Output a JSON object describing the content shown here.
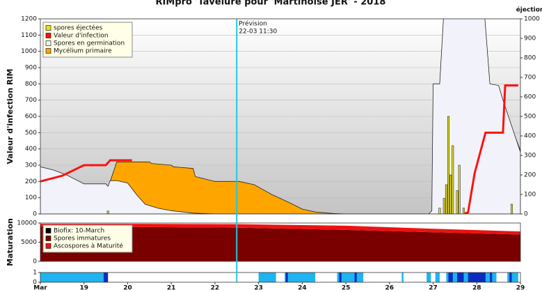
{
  "chart_data": [
    {
      "type": "combo",
      "title": "RIMpro 'Tavelure pour 'Martinoise JER' - 2018",
      "y_label": "Valeur d'infection RIM",
      "y2_label": "éjection",
      "xlim": [
        18,
        29
      ],
      "ylim": [
        0,
        1200
      ],
      "yticks": [
        0,
        100,
        200,
        300,
        400,
        500,
        600,
        700,
        800,
        900,
        1000,
        1100,
        1200
      ],
      "y2lim": [
        0,
        1000
      ],
      "y2ticks": [
        0,
        100,
        200,
        300,
        400,
        500,
        600,
        700,
        800,
        900,
        1000
      ],
      "grid": true,
      "forecast": {
        "label": "Prévision",
        "time": "22-03 11:30",
        "x": 22.5,
        "color": "#22c8dc"
      },
      "series": [
        {
          "name": "spores éjectées",
          "kind": "bar",
          "axis": "y2",
          "color": "#e8e020",
          "x": [
            19.55,
            27.15,
            27.25,
            27.3,
            27.35,
            27.4,
            27.45,
            27.55,
            27.6,
            27.7,
            28.8
          ],
          "values": [
            15,
            30,
            80,
            150,
            500,
            200,
            350,
            120,
            250,
            30,
            50
          ]
        },
        {
          "name": "Valeur d'infection",
          "kind": "line",
          "color": "#ff1010",
          "x": [
            18,
            18.5,
            19,
            19.5,
            19.6,
            20.1,
            20.15,
            27.7,
            27.8,
            27.95,
            28.2,
            28.4,
            28.6,
            28.65,
            28.95
          ],
          "values": [
            200,
            235,
            300,
            300,
            330,
            330,
            null,
            0,
            10,
            250,
            500,
            500,
            500,
            790,
            790
          ]
        },
        {
          "name": "Spores en germination",
          "kind": "area",
          "color": "#f2f2fa",
          "x": [
            18,
            18.3,
            18.6,
            19,
            19.5,
            19.55,
            19.6,
            19.75,
            20,
            20.2,
            20.4,
            20.7,
            21,
            21.5,
            22,
            26.9,
            26.97,
            27.0,
            27.15,
            27.3,
            28.1,
            28.3,
            28.5,
            28.6,
            29
          ],
          "values": [
            290,
            270,
            240,
            185,
            185,
            170,
            205,
            205,
            190,
            120,
            60,
            35,
            20,
            5,
            0,
            0,
            20,
            800,
            800,
            1500,
            1500,
            800,
            790,
            700,
            380
          ]
        },
        {
          "name": "Mycélium primaire",
          "kind": "area",
          "color": "#ffa500",
          "x": [
            19.55,
            19.6,
            19.75,
            20,
            20.5,
            20.55,
            21,
            21.05,
            21.5,
            21.55,
            22,
            22.55,
            22.9,
            23.3,
            23.7,
            24,
            24.3,
            24.7,
            25,
            28.5,
            28.55,
            29
          ],
          "values": [
            0,
            200,
            320,
            320,
            320,
            310,
            300,
            290,
            280,
            230,
            200,
            200,
            180,
            120,
            70,
            30,
            12,
            3,
            0,
            0,
            700,
            390
          ]
        }
      ]
    },
    {
      "type": "stackedarea",
      "y_label": "Maturation",
      "xlim": [
        18,
        29
      ],
      "ylim": [
        0,
        10000
      ],
      "yticks": [
        0,
        5000,
        10000
      ],
      "biofix": {
        "label": "Biofix: 10-March",
        "color": "#000000"
      },
      "series": [
        {
          "name": "Spores immatures",
          "color": "#7a0000",
          "x": [
            18,
            20,
            22.5,
            25,
            27,
            29
          ],
          "values": [
            9000,
            8950,
            8800,
            8200,
            7600,
            7000
          ]
        },
        {
          "name": "Ascospores à Maturité",
          "color": "#ee1111",
          "x": [
            18,
            20,
            22.5,
            25,
            27,
            29
          ],
          "values": [
            800,
            850,
            900,
            1100,
            900,
            800
          ]
        }
      ]
    },
    {
      "type": "timeline",
      "xlim": [
        18,
        29
      ],
      "ylim": [
        0,
        1
      ],
      "yticks": [
        0,
        1
      ],
      "xticks": [
        {
          "value": 18,
          "label": "Mar"
        },
        19,
        20,
        21,
        22,
        23,
        24,
        25,
        26,
        27,
        28,
        29
      ],
      "series": [
        {
          "color": "#1eb4f0",
          "starts": [
            18,
            23,
            23.6,
            24.8,
            26.28,
            26.85,
            27.05,
            27.3,
            28.7
          ],
          "ends": [
            19.45,
            23.4,
            24.3,
            25.4,
            26.32,
            26.95,
            27.15,
            28.45,
            28.95
          ]
        },
        {
          "color": "#0a2cc0",
          "starts": [
            19.45,
            23.62,
            24.85,
            25.2,
            27.35,
            27.55,
            27.8,
            28.3,
            28.75
          ],
          "ends": [
            19.55,
            23.67,
            24.9,
            25.25,
            27.45,
            27.7,
            28.2,
            28.35,
            28.8
          ]
        }
      ]
    }
  ]
}
